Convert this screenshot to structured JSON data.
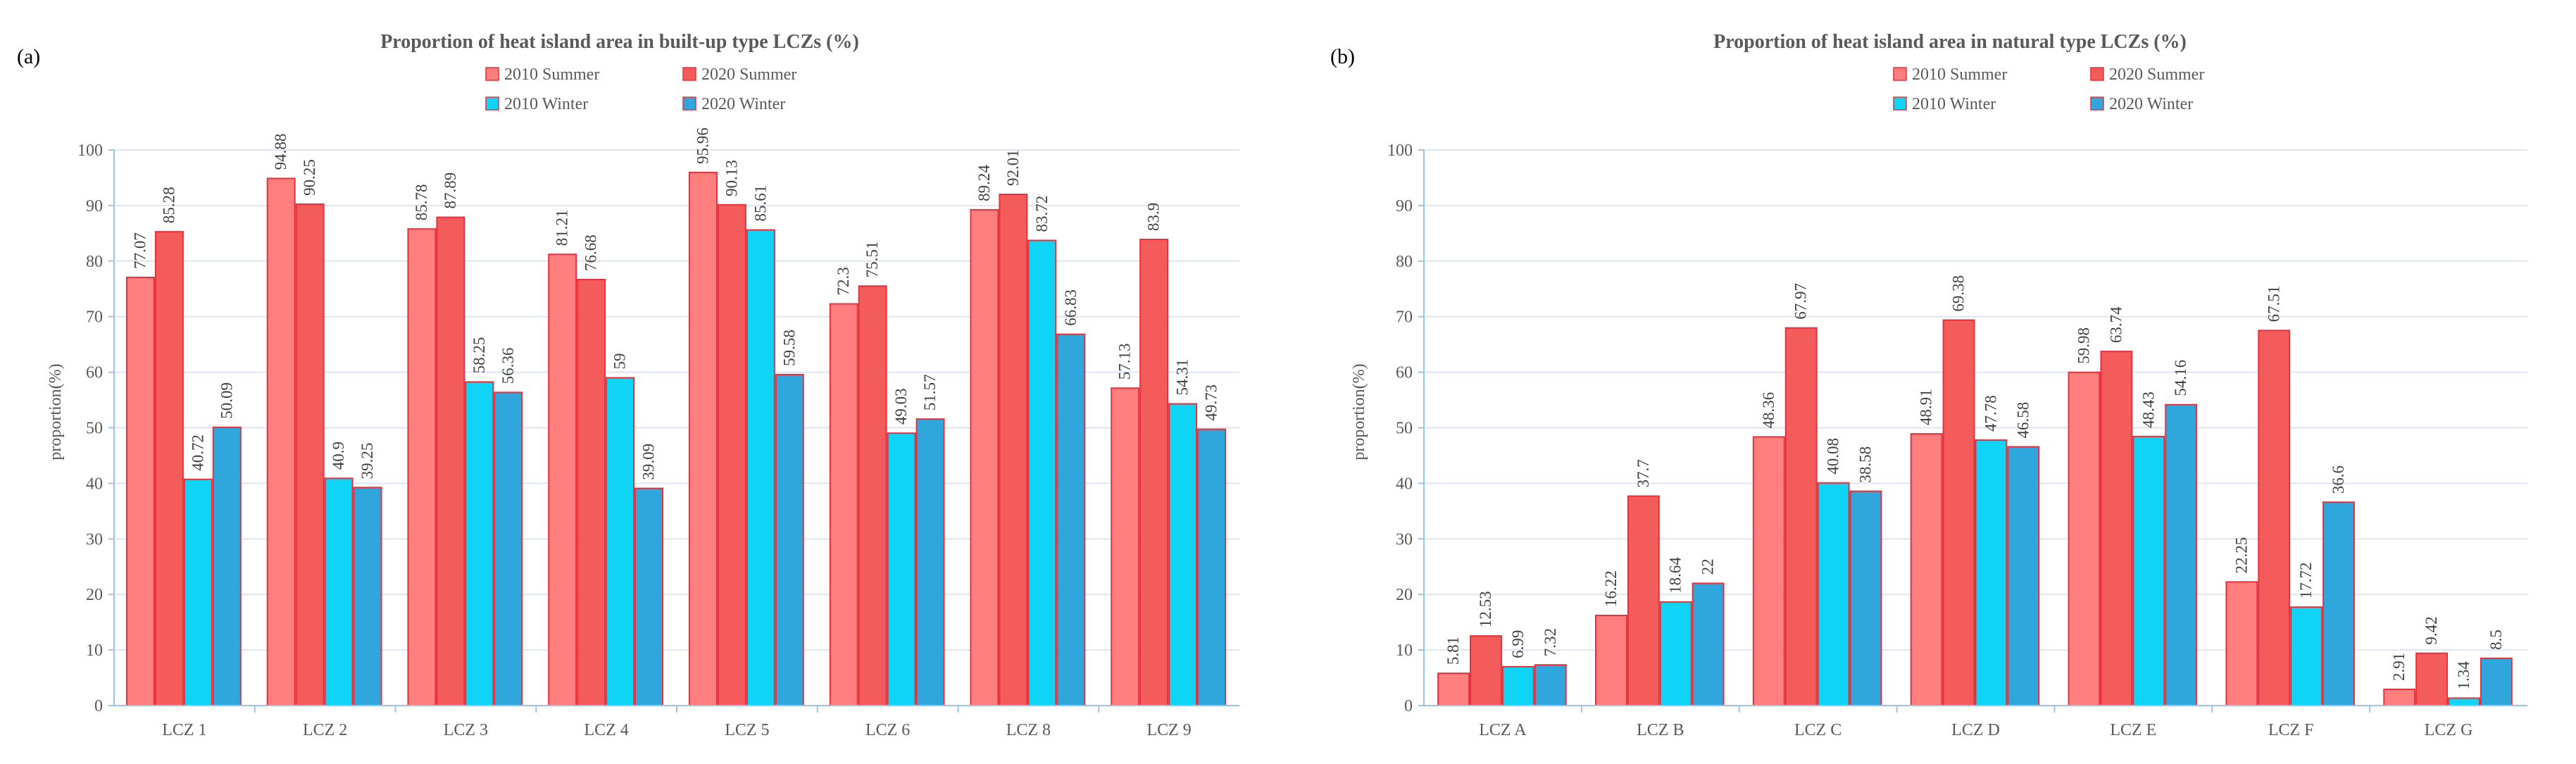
{
  "chart_data": [
    {
      "type": "bar",
      "panel_label": "(a)",
      "title": "Proportion of heat island area in built-up type LCZs (%)",
      "ylabel": "proportion(%)",
      "xlabel": "",
      "ylim": [
        0,
        100
      ],
      "yticks": [
        0,
        10,
        20,
        30,
        40,
        50,
        60,
        70,
        80,
        90,
        100
      ],
      "grid": true,
      "legend_position": "top-center",
      "categories": [
        "LCZ 1",
        "LCZ 2",
        "LCZ 3",
        "LCZ 4",
        "LCZ 5",
        "LCZ 6",
        "LCZ 8",
        "LCZ 9"
      ],
      "series": [
        {
          "name": "2010 Summer",
          "color": "#FF7F7F",
          "values": [
            77.07,
            94.88,
            85.78,
            81.21,
            95.96,
            72.3,
            89.24,
            57.13
          ]
        },
        {
          "name": "2020 Summer",
          "color": "#F45B5B",
          "values": [
            85.28,
            90.25,
            87.89,
            76.68,
            90.13,
            75.51,
            92.01,
            83.9
          ]
        },
        {
          "name": "2010 Winter",
          "color": "#10D4F5",
          "values": [
            40.72,
            40.9,
            58.25,
            59,
            85.61,
            49.03,
            83.72,
            54.31
          ]
        },
        {
          "name": "2020 Winter",
          "color": "#2FA7DD",
          "values": [
            50.09,
            39.25,
            56.36,
            39.09,
            59.58,
            51.57,
            66.83,
            49.73
          ]
        }
      ]
    },
    {
      "type": "bar",
      "panel_label": "(b)",
      "title": "Proportion of heat island area in natural type LCZs  (%)",
      "ylabel": "proportion(%)",
      "xlabel": "",
      "ylim": [
        0,
        100
      ],
      "yticks": [
        0,
        10,
        20,
        30,
        40,
        50,
        60,
        70,
        80,
        90,
        100
      ],
      "grid": true,
      "legend_position": "top-center",
      "categories": [
        "LCZ A",
        "LCZ B",
        "LCZ C",
        "LCZ D",
        "LCZ E",
        "LCZ F",
        "LCZ G"
      ],
      "series": [
        {
          "name": "2010 Summer",
          "color": "#FF7F7F",
          "values": [
            5.81,
            16.22,
            48.36,
            48.91,
            59.98,
            22.25,
            2.91
          ]
        },
        {
          "name": "2020 Summer",
          "color": "#F45B5B",
          "values": [
            12.53,
            37.7,
            67.97,
            69.38,
            63.74,
            67.51,
            9.42
          ]
        },
        {
          "name": "2010 Winter",
          "color": "#10D4F5",
          "values": [
            6.99,
            18.64,
            40.08,
            47.78,
            48.43,
            17.72,
            1.34
          ]
        },
        {
          "name": "2020 Winter",
          "color": "#2FA7DD",
          "values": [
            7.32,
            22,
            38.58,
            46.58,
            54.16,
            36.6,
            8.5
          ]
        }
      ]
    }
  ],
  "colors": {
    "bar_outline": "#E8303C",
    "axis": "#9DC3E6",
    "grid": "#DCE6F2"
  }
}
